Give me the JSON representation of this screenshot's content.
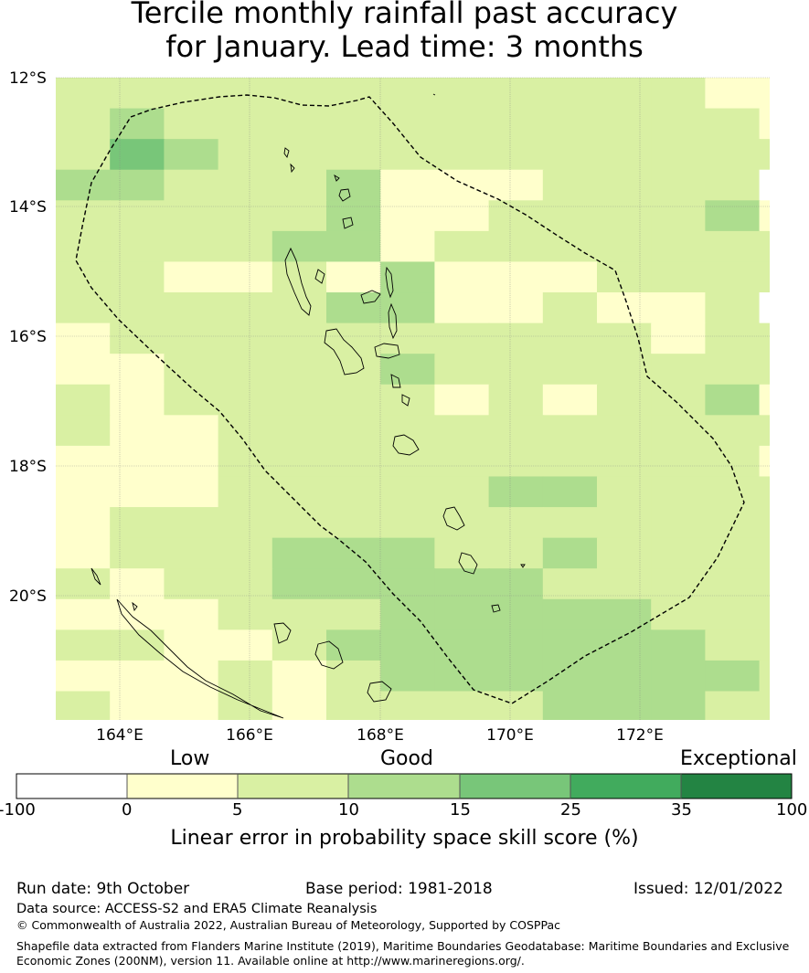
{
  "title": {
    "line1": "Tercile monthly rainfall past accuracy",
    "line2": "for January. Lead time: 3 months"
  },
  "map": {
    "lat_labels": [
      "12°S",
      "14°S",
      "16°S",
      "18°S",
      "20°S"
    ],
    "lon_labels": [
      "164°E",
      "166°E",
      "168°E",
      "170°E",
      "172°E"
    ],
    "boundary": "dashed-line",
    "grid_cells": [
      "aaaaaaaaaaaaaaaaaaaaaaaaaaaaaaaaaaaaaaaaaaaaaaaaaaaaaaaaaaaaaaaaaaaaaaaaaaaaaaaaaaaaaaaaa"
    ]
  },
  "colorbar": {
    "category_labels": [
      "Low",
      "Good",
      "Exceptional"
    ],
    "ticks": [
      "-100",
      "0",
      "5",
      "10",
      "15",
      "25",
      "35",
      "100"
    ],
    "colors": [
      "#ffffff",
      "#ffffcc",
      "#d9f0a3",
      "#addd8e",
      "#78c679",
      "#41ab5d",
      "#238443"
    ],
    "title": "Linear error in probability space skill score (%)"
  },
  "footer": {
    "run_date": "Run date: 9th October",
    "base_period": "Base period: 1981-2018",
    "issued": "Issued: 12/01/2022",
    "data_source": "Data source: ACCESS-S2 and ERA5 Climate Reanalysis",
    "copyright": "© Commonwealth of Australia 2022, Australian Bureau of Meteorology, Supported by COSPPac",
    "shapefile_line1": "Shapefile data extracted from Flanders Marine Institute (2019), Maritime Boundaries Geodatabase: Maritime Boundaries and Exclusive",
    "shapefile_line2": "Economic Zones (200NM), version 11. Available online at http://www.marineregions.org/."
  }
}
